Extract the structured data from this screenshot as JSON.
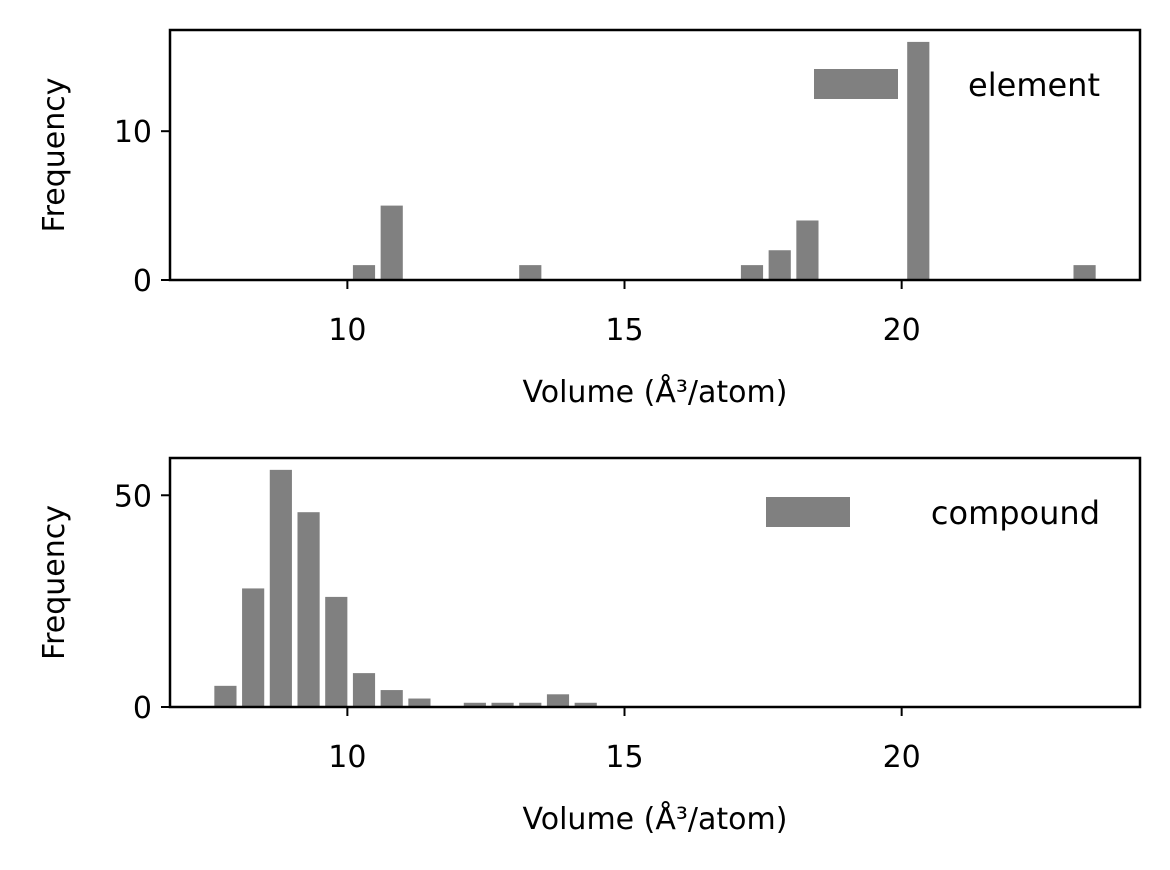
{
  "chart_data": [
    {
      "type": "bar",
      "title": "",
      "xlabel": "Volume (Å³/atom)",
      "ylabel": "Frequency",
      "xlim": [
        6.8,
        24.3
      ],
      "ylim": [
        0,
        16.8
      ],
      "xticks": [
        10,
        15,
        20
      ],
      "yticks": [
        0,
        10
      ],
      "bar_width": 0.4,
      "bar_color": "#808080",
      "grid": false,
      "legend": {
        "label": "element",
        "position": "top-right"
      },
      "bars": [
        {
          "x": 10.3,
          "y": 1
        },
        {
          "x": 10.8,
          "y": 5
        },
        {
          "x": 13.3,
          "y": 1
        },
        {
          "x": 17.3,
          "y": 1
        },
        {
          "x": 17.8,
          "y": 2
        },
        {
          "x": 18.3,
          "y": 4
        },
        {
          "x": 20.3,
          "y": 16
        },
        {
          "x": 23.3,
          "y": 1
        }
      ]
    },
    {
      "type": "bar",
      "title": "",
      "xlabel": "Volume (Å³/atom)",
      "ylabel": "Frequency",
      "xlim": [
        6.8,
        24.3
      ],
      "ylim": [
        0,
        58.8
      ],
      "xticks": [
        10,
        15,
        20
      ],
      "yticks": [
        0,
        50
      ],
      "bar_width": 0.4,
      "bar_color": "#808080",
      "grid": false,
      "legend": {
        "label": "compound",
        "position": "top-right"
      },
      "bars": [
        {
          "x": 7.8,
          "y": 5
        },
        {
          "x": 8.3,
          "y": 28
        },
        {
          "x": 8.8,
          "y": 56
        },
        {
          "x": 9.3,
          "y": 46
        },
        {
          "x": 9.8,
          "y": 26
        },
        {
          "x": 10.3,
          "y": 8
        },
        {
          "x": 10.8,
          "y": 4
        },
        {
          "x": 11.3,
          "y": 2
        },
        {
          "x": 12.3,
          "y": 1
        },
        {
          "x": 12.8,
          "y": 1
        },
        {
          "x": 13.3,
          "y": 1
        },
        {
          "x": 13.8,
          "y": 3
        },
        {
          "x": 14.3,
          "y": 1
        }
      ]
    }
  ]
}
